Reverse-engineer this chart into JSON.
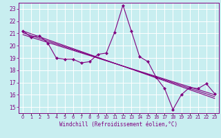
{
  "title": "",
  "xlabel": "Windchill (Refroidissement éolien,°C)",
  "bg_color": "#c8eef0",
  "grid_color": "#ffffff",
  "line_color": "#800080",
  "x_labels": [
    "0",
    "1",
    "2",
    "3",
    "4",
    "5",
    "6",
    "7",
    "8",
    "9",
    "10",
    "11",
    "12",
    "13",
    "14",
    "15",
    "16",
    "17",
    "18",
    "19",
    "20",
    "21",
    "22",
    "23"
  ],
  "ylim": [
    14.5,
    23.5
  ],
  "xlim": [
    -0.5,
    23.5
  ],
  "yticks": [
    15,
    16,
    17,
    18,
    19,
    20,
    21,
    22,
    23
  ],
  "series1": [
    21.2,
    20.7,
    20.8,
    20.2,
    19.0,
    18.9,
    18.9,
    18.6,
    18.7,
    19.3,
    19.4,
    21.1,
    23.3,
    21.2,
    19.1,
    18.7,
    17.4,
    16.5,
    14.8,
    16.0,
    16.6,
    16.5,
    16.9,
    16.1
  ],
  "series2_x": [
    0,
    23
  ],
  "series2_y": [
    21.2,
    15.7
  ],
  "series3_x": [
    0,
    23
  ],
  "series3_y": [
    21.05,
    15.85
  ],
  "series4_x": [
    0,
    23
  ],
  "series4_y": [
    20.9,
    16.0
  ]
}
